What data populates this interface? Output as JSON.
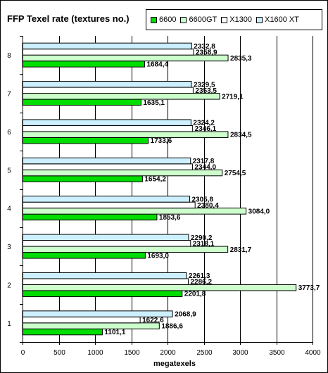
{
  "chart_data": {
    "type": "bar",
    "orientation": "horizontal",
    "title": "FFP Texel rate (textures no.)",
    "xlabel": "megatexels",
    "ylabel": "",
    "xlim": [
      0,
      4000
    ],
    "xticks": [
      0,
      500,
      1000,
      1500,
      2000,
      2500,
      3000,
      3500,
      4000
    ],
    "grid": true,
    "legend_position": "top-right",
    "categories": [
      "1",
      "2",
      "3",
      "4",
      "5",
      "6",
      "7",
      "8"
    ],
    "series": [
      {
        "name": "6600",
        "color": "#00dd00",
        "values": [
          1101.1,
          2201.8,
          1693.0,
          1853.6,
          1654.2,
          1733.6,
          1635.1,
          1684.4
        ],
        "labels": [
          "1101,1",
          "2201,8",
          "1693,0",
          "1853,6",
          "1654,2",
          "1733,6",
          "1635,1",
          "1684,4"
        ]
      },
      {
        "name": "6600GT",
        "color": "#ccffcc",
        "values": [
          1886.6,
          3773.7,
          2831.7,
          3084.0,
          2754.5,
          2834.5,
          2719.1,
          2835.3
        ],
        "labels": [
          "1886,6",
          "3773,7",
          "2831,7",
          "3084,0",
          "2754,5",
          "2834,5",
          "2719,1",
          "2835,3"
        ]
      },
      {
        "name": "X1300",
        "color": "#ffffff",
        "values": [
          1622.6,
          2286.2,
          2318.1,
          2380.4,
          2344.0,
          2346.1,
          2353.5,
          2358.9
        ],
        "labels": [
          "1622,6",
          "2286,2",
          "2318,1",
          "2380,4",
          "2344,0",
          "2346,1",
          "2353,5",
          "2358,9"
        ]
      },
      {
        "name": "X1600 XT",
        "color": "#ccf0ff",
        "values": [
          2068.9,
          2261.3,
          2290.2,
          2305.8,
          2317.8,
          2324.2,
          2329.5,
          2332.8
        ],
        "labels": [
          "2068,9",
          "2261,3",
          "2290,2",
          "2305,8",
          "2317,8",
          "2324,2",
          "2329,5",
          "2332,8"
        ]
      }
    ]
  }
}
